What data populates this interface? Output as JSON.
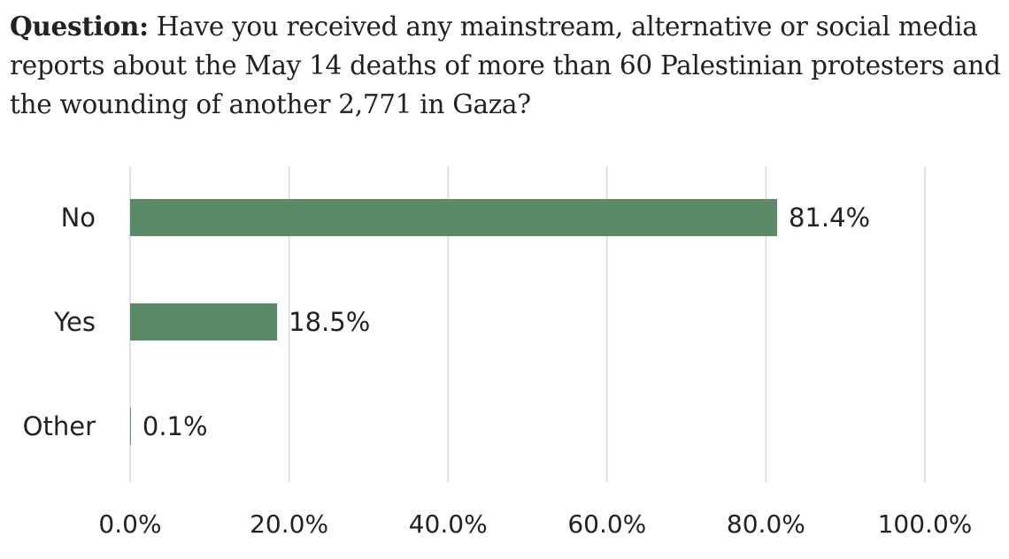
{
  "question": {
    "label": "Question:",
    "text": " Have you received any mainstream, alternative or social media reports about the May 14 deaths of more than 60 Palestinian protesters and the wounding of another 2,771 in Gaza?"
  },
  "chart_data": {
    "type": "bar",
    "orientation": "horizontal",
    "categories": [
      "No",
      "Yes",
      "Other"
    ],
    "values": [
      81.4,
      18.5,
      0.1
    ],
    "data_labels": [
      "81.4%",
      "18.5%",
      "0.1%"
    ],
    "xlim": [
      0,
      100
    ],
    "x_ticks": [
      0,
      20,
      40,
      60,
      80,
      100
    ],
    "x_tick_labels": [
      "0.0%",
      "20.0%",
      "40.0%",
      "60.0%",
      "80.0%",
      "100.0%"
    ],
    "grid": "vertical",
    "legend": "none",
    "bar_color": "#5a8a66",
    "grid_color": "#d9d9d9",
    "text_color": "#222222"
  }
}
